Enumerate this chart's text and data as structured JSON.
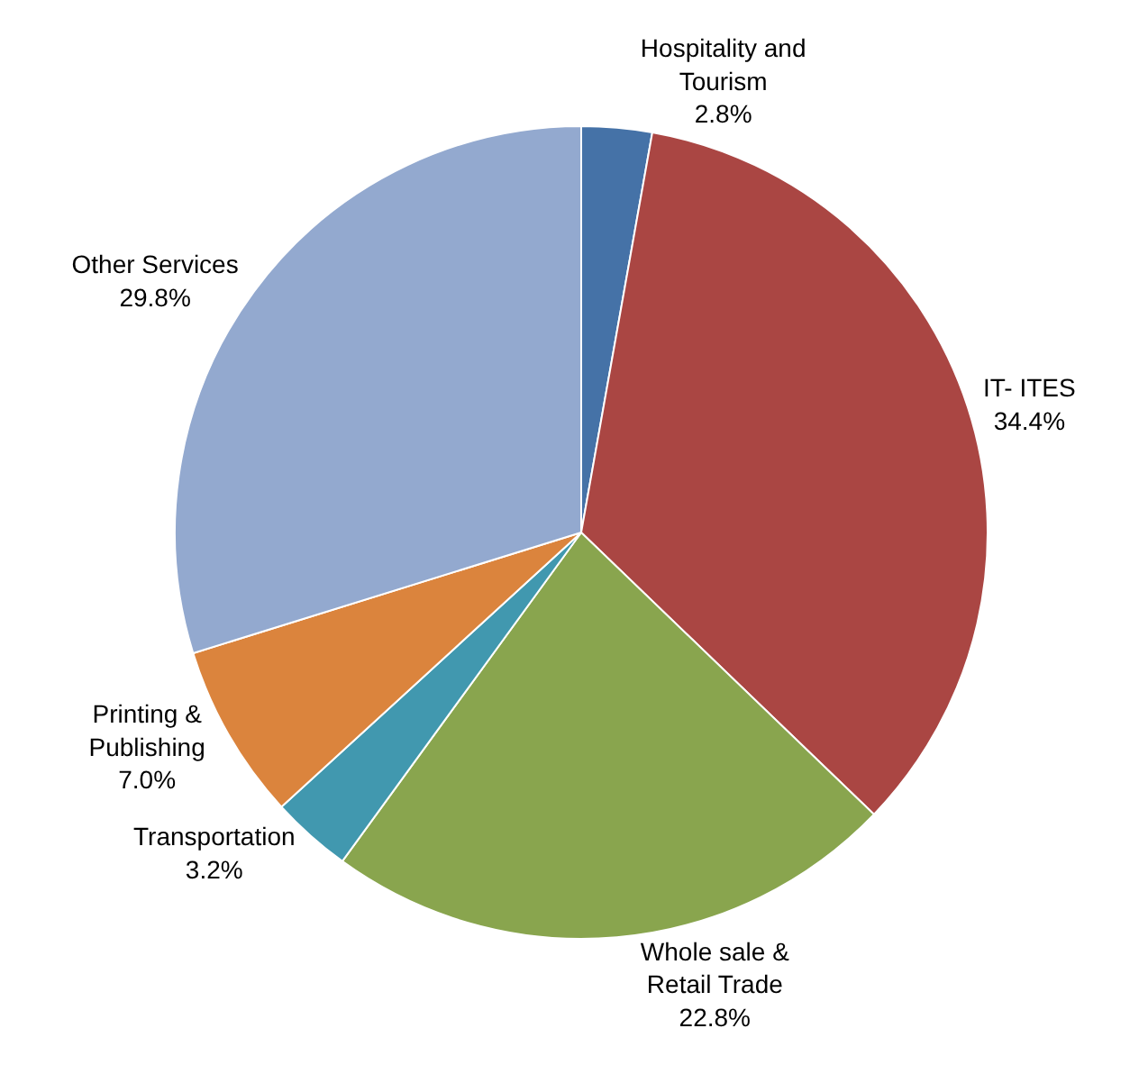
{
  "chart_data": {
    "type": "pie",
    "categories": [
      "Hospitality and Tourism",
      "IT- ITES",
      "Whole sale & Retail Trade",
      "Transportation",
      "Printing & Publishing",
      "Other Services"
    ],
    "values": [
      2.8,
      34.4,
      22.8,
      3.2,
      7.0,
      29.8
    ],
    "value_labels": [
      "2.8%",
      "34.4%",
      "22.8%",
      "3.2%",
      "7.0%",
      "29.8%"
    ],
    "colors": [
      "#4572a7",
      "#aa4643",
      "#89a54e",
      "#4198af",
      "#db843d",
      "#93a9cf"
    ],
    "legend": false
  }
}
